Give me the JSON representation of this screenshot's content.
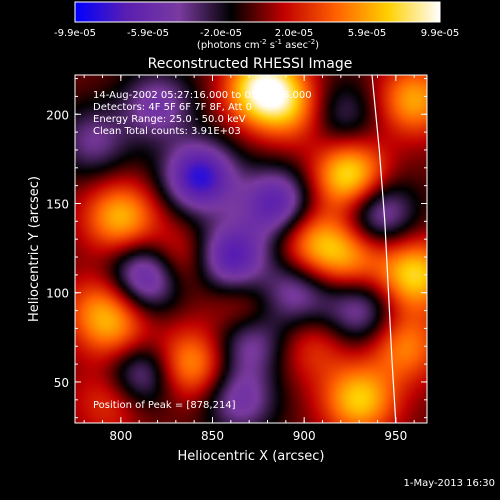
{
  "chart_data": {
    "type": "heatmap",
    "title": "Reconstructed RHESSI Image",
    "xlabel": "Heliocentric X (arcsec)",
    "ylabel": "Heliocentric Y (arcsec)",
    "xlim": [
      775,
      967
    ],
    "ylim": [
      27,
      222
    ],
    "x_ticks": [
      800,
      850,
      900,
      950
    ],
    "y_ticks": [
      50,
      100,
      150,
      200
    ],
    "colorbar": {
      "range": [
        -9.9e-05,
        9.9e-05
      ],
      "tick_labels": [
        "-9.9e-05",
        "-5.9e-05",
        "-2.0e-05",
        "2.0e-05",
        "5.9e-05",
        "9.9e-05"
      ],
      "unit": "(photons cm",
      "unit_exp1": "-2",
      "unit_mid": " s",
      "unit_exp2": "-1",
      "unit_mid2": " asec",
      "unit_exp3": "-2",
      "unit_close": ")",
      "colors": [
        "#0000ff",
        "#5a1fb0",
        "#7a3aa0",
        "#000000",
        "#c00000",
        "#ff6000",
        "#ffd000",
        "#ffffff"
      ]
    },
    "annotations": {
      "time": "14-Aug-2002 05:27:16.000 to 05:32:26.000",
      "detectors": "Detectors: 4F 5F 6F 7F 8F, Att 0",
      "energy": "Energy Range: 25.0 - 50.0 keV",
      "clean": "Clean     Total counts: 3.91E+03",
      "peak": "Position of Peak = [878,214]"
    },
    "limb_curve": [
      [
        937,
        222
      ],
      [
        941,
        180
      ],
      [
        944,
        140
      ],
      [
        946,
        100
      ],
      [
        948,
        60
      ],
      [
        950,
        27
      ]
    ],
    "sources": [
      {
        "x": 878,
        "y": 214,
        "v": 9.9e-05
      },
      {
        "x": 925,
        "y": 165,
        "v": 8.5e-05
      },
      {
        "x": 960,
        "y": 208,
        "v": 6e-05
      },
      {
        "x": 800,
        "y": 142,
        "v": 6.5e-05
      },
      {
        "x": 830,
        "y": 118,
        "v": 4.5e-05
      },
      {
        "x": 905,
        "y": 128,
        "v": 5.5e-05
      },
      {
        "x": 925,
        "y": 120,
        "v": 5e-05
      },
      {
        "x": 790,
        "y": 90,
        "v": 5e-05
      },
      {
        "x": 800,
        "y": 75,
        "v": 3.5e-05
      },
      {
        "x": 868,
        "y": 87,
        "v": 4.5e-05
      },
      {
        "x": 838,
        "y": 60,
        "v": 6e-05
      },
      {
        "x": 960,
        "y": 110,
        "v": 7.5e-05
      },
      {
        "x": 955,
        "y": 70,
        "v": 5e-05
      },
      {
        "x": 930,
        "y": 40,
        "v": 7e-05
      },
      {
        "x": 905,
        "y": 70,
        "v": 3e-05
      },
      {
        "x": 795,
        "y": 40,
        "v": 3.5e-05
      },
      {
        "x": 895,
        "y": 202,
        "v": 4e-05
      },
      {
        "x": 820,
        "y": 205,
        "v": -5e-05
      },
      {
        "x": 843,
        "y": 165,
        "v": -8.5e-05
      },
      {
        "x": 885,
        "y": 150,
        "v": -7e-05
      },
      {
        "x": 860,
        "y": 120,
        "v": -7.5e-05
      },
      {
        "x": 815,
        "y": 110,
        "v": -8e-05
      },
      {
        "x": 940,
        "y": 145,
        "v": -6e-05
      },
      {
        "x": 870,
        "y": 75,
        "v": -6.5e-05
      },
      {
        "x": 895,
        "y": 100,
        "v": -5e-05
      },
      {
        "x": 930,
        "y": 90,
        "v": -5e-05
      },
      {
        "x": 810,
        "y": 55,
        "v": -6e-05
      },
      {
        "x": 865,
        "y": 40,
        "v": -5e-05
      },
      {
        "x": 785,
        "y": 185,
        "v": -4e-05
      },
      {
        "x": 920,
        "y": 200,
        "v": -3.5e-05
      }
    ]
  },
  "footer": {
    "date": "1-May-2013 16:30"
  }
}
